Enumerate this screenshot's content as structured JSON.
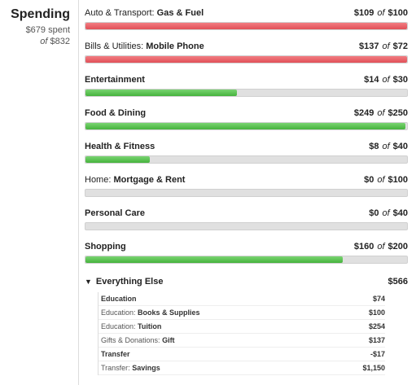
{
  "summary": {
    "title": "Spending",
    "spent_line": "$679 spent",
    "of_word": "of",
    "total": "$832"
  },
  "budgets": [
    {
      "category": "Auto & Transport:",
      "sub": "Gas & Fuel",
      "spent": "$109",
      "of": "of",
      "budget": "$100",
      "fill_pct": 100,
      "status": "over"
    },
    {
      "category": "Bills & Utilities:",
      "sub": "Mobile Phone",
      "spent": "$137",
      "of": "of",
      "budget": "$72",
      "fill_pct": 100,
      "status": "over"
    },
    {
      "category": "",
      "sub": "Entertainment",
      "spent": "$14",
      "of": "of",
      "budget": "$30",
      "fill_pct": 47,
      "status": "ok"
    },
    {
      "category": "",
      "sub": "Food & Dining",
      "spent": "$249",
      "of": "of",
      "budget": "$250",
      "fill_pct": 99.6,
      "status": "ok"
    },
    {
      "category": "",
      "sub": "Health & Fitness",
      "spent": "$8",
      "of": "of",
      "budget": "$40",
      "fill_pct": 20,
      "status": "ok"
    },
    {
      "category": "Home:",
      "sub": "Mortgage & Rent",
      "spent": "$0",
      "of": "of",
      "budget": "$100",
      "fill_pct": 0,
      "status": "ok"
    },
    {
      "category": "",
      "sub": "Personal Care",
      "spent": "$0",
      "of": "of",
      "budget": "$40",
      "fill_pct": 0,
      "status": "ok"
    },
    {
      "category": "",
      "sub": "Shopping",
      "spent": "$160",
      "of": "of",
      "budget": "$200",
      "fill_pct": 80,
      "status": "ok"
    }
  ],
  "everything_else": {
    "toggle_icon": "triangle-down",
    "label": "Everything Else",
    "total": "$566",
    "items": [
      {
        "category": "",
        "sub": "Education",
        "amount": "$74"
      },
      {
        "category": "Education:",
        "sub": "Books & Supplies",
        "amount": "$100"
      },
      {
        "category": "Education:",
        "sub": "Tuition",
        "amount": "$254"
      },
      {
        "category": "Gifts & Donations:",
        "sub": "Gift",
        "amount": "$137"
      },
      {
        "category": "",
        "sub": "Transfer",
        "amount": "-$17"
      },
      {
        "category": "Transfer:",
        "sub": "Savings",
        "amount": "$1,150"
      }
    ]
  },
  "colors": {
    "over": "#e15058",
    "ok": "#45b33c",
    "track": "#e0e0e0"
  }
}
